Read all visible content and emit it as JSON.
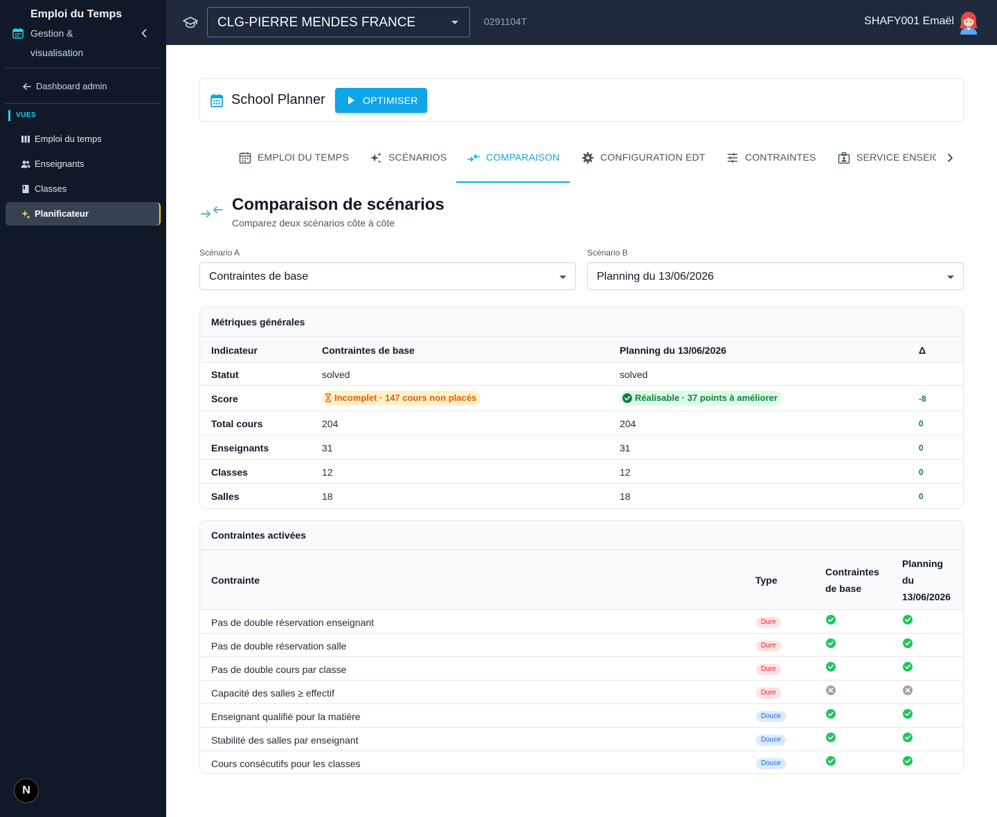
{
  "sidebar": {
    "title": "Emploi du Temps",
    "subtitle": "Gestion & visualisation",
    "back_label": "Dashboard admin",
    "section": "VUES",
    "items": [
      {
        "label": "Emploi du temps",
        "icon": "columns-icon"
      },
      {
        "label": "Enseignants",
        "icon": "users-icon"
      },
      {
        "label": "Classes",
        "icon": "book-icon"
      },
      {
        "label": "Planificateur",
        "icon": "sparkles-icon",
        "active": true
      }
    ],
    "badge": "N"
  },
  "topbar": {
    "school": "CLG-PIERRE MENDES FRANCE",
    "school_code": "0291104T",
    "user": "SHAFY001 Emaël"
  },
  "header": {
    "title": "School Planner",
    "optimize_label": "OPTIMISER"
  },
  "tabs": [
    {
      "label": "EMPLOI DU TEMPS",
      "icon": "calendar-icon"
    },
    {
      "label": "SCÉNARIOS",
      "icon": "sparkles-icon"
    },
    {
      "label": "COMPARAISON",
      "icon": "compare-arrows-icon",
      "active": true
    },
    {
      "label": "CONFIGURATION EDT",
      "icon": "gear-icon"
    },
    {
      "label": "CONTRAINTES",
      "icon": "sliders-icon"
    },
    {
      "label": "SERVICE ENSEIG",
      "icon": "badge-icon"
    }
  ],
  "comparison": {
    "title": "Comparaison de scénarios",
    "subtitle": "Comparez deux scénarios côte à côte",
    "scenario_a_label": "Scénario A",
    "scenario_a_value": "Contraintes de base",
    "scenario_b_label": "Scénario B",
    "scenario_b_value": "Planning du 13/06/2026"
  },
  "metrics": {
    "title": "Métriques générales",
    "headers": [
      "Indicateur",
      "Contraintes de base",
      "Planning du 13/06/2026",
      "Δ"
    ],
    "status_row": {
      "label": "Statut",
      "a": "solved",
      "b": "solved"
    },
    "score_row": {
      "label": "Score",
      "a": "Incomplet · 147 cours non placés",
      "b": "Réalisable · 37 points à améliorer",
      "delta": "-8"
    },
    "rows": [
      {
        "label": "Total cours",
        "a": "204",
        "b": "204",
        "delta": "0"
      },
      {
        "label": "Enseignants",
        "a": "31",
        "b": "31",
        "delta": "0"
      },
      {
        "label": "Classes",
        "a": "12",
        "b": "12",
        "delta": "0"
      },
      {
        "label": "Salles",
        "a": "18",
        "b": "18",
        "delta": "0"
      }
    ]
  },
  "constraints": {
    "title": "Contraintes activées",
    "headers": {
      "name": "Contrainte",
      "type": "Type",
      "a_line1": "Contraintes",
      "a_line2": "de base",
      "b_line1": "Planning",
      "b_line2": "du",
      "b_line3": "13/06/2026"
    },
    "rows": [
      {
        "name": "Pas de double réservation enseignant",
        "type": "Dure",
        "kind": "dure",
        "a": true,
        "b": true
      },
      {
        "name": "Pas de double réservation salle",
        "type": "Dure",
        "kind": "dure",
        "a": true,
        "b": true
      },
      {
        "name": "Pas de double cours par classe",
        "type": "Dure",
        "kind": "dure",
        "a": true,
        "b": true
      },
      {
        "name": "Capacité des salles ≥ effectif",
        "type": "Dure",
        "kind": "dure",
        "a": false,
        "b": false
      },
      {
        "name": "Enseignant qualifié pour la matière",
        "type": "Douce",
        "kind": "douce",
        "a": true,
        "b": true
      },
      {
        "name": "Stabilité des salles par enseignant",
        "type": "Douce",
        "kind": "douce",
        "a": true,
        "b": true
      },
      {
        "name": "Cours consécutifs pour les classes",
        "type": "Douce",
        "kind": "douce",
        "a": true,
        "b": true
      }
    ]
  },
  "colors": {
    "sidebar_bg": "#111827",
    "topbar_bg": "#1e293b",
    "accent": "#0ea5e9",
    "active_marker": "#facc15",
    "ok": "#22c55e",
    "off": "#9ca3af"
  }
}
